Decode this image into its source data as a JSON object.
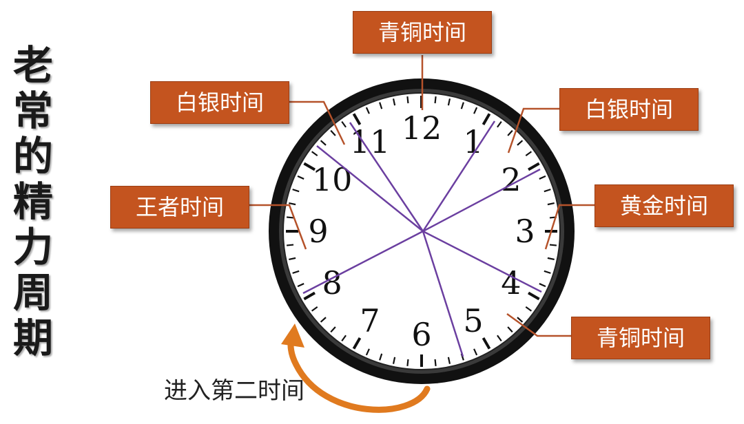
{
  "vertical_title": "老常的精力周期",
  "labels": {
    "top": "青铜时间",
    "upper_left": "白银时间",
    "upper_right": "白银时间",
    "left": "王者时间",
    "right": "黄金时间",
    "lower_right": "青铜时间"
  },
  "second_time_text": "进入第二时间",
  "clock_numbers": [
    "12",
    "1",
    "2",
    "3",
    "4",
    "5",
    "6",
    "7",
    "8",
    "9",
    "10",
    "11"
  ],
  "colors": {
    "label_bg": "#c4541f",
    "leader_line": "#b5522a",
    "divider_line": "#6b3fa0",
    "arrow": "#e07a1f",
    "clock_rim": "#111111"
  }
}
